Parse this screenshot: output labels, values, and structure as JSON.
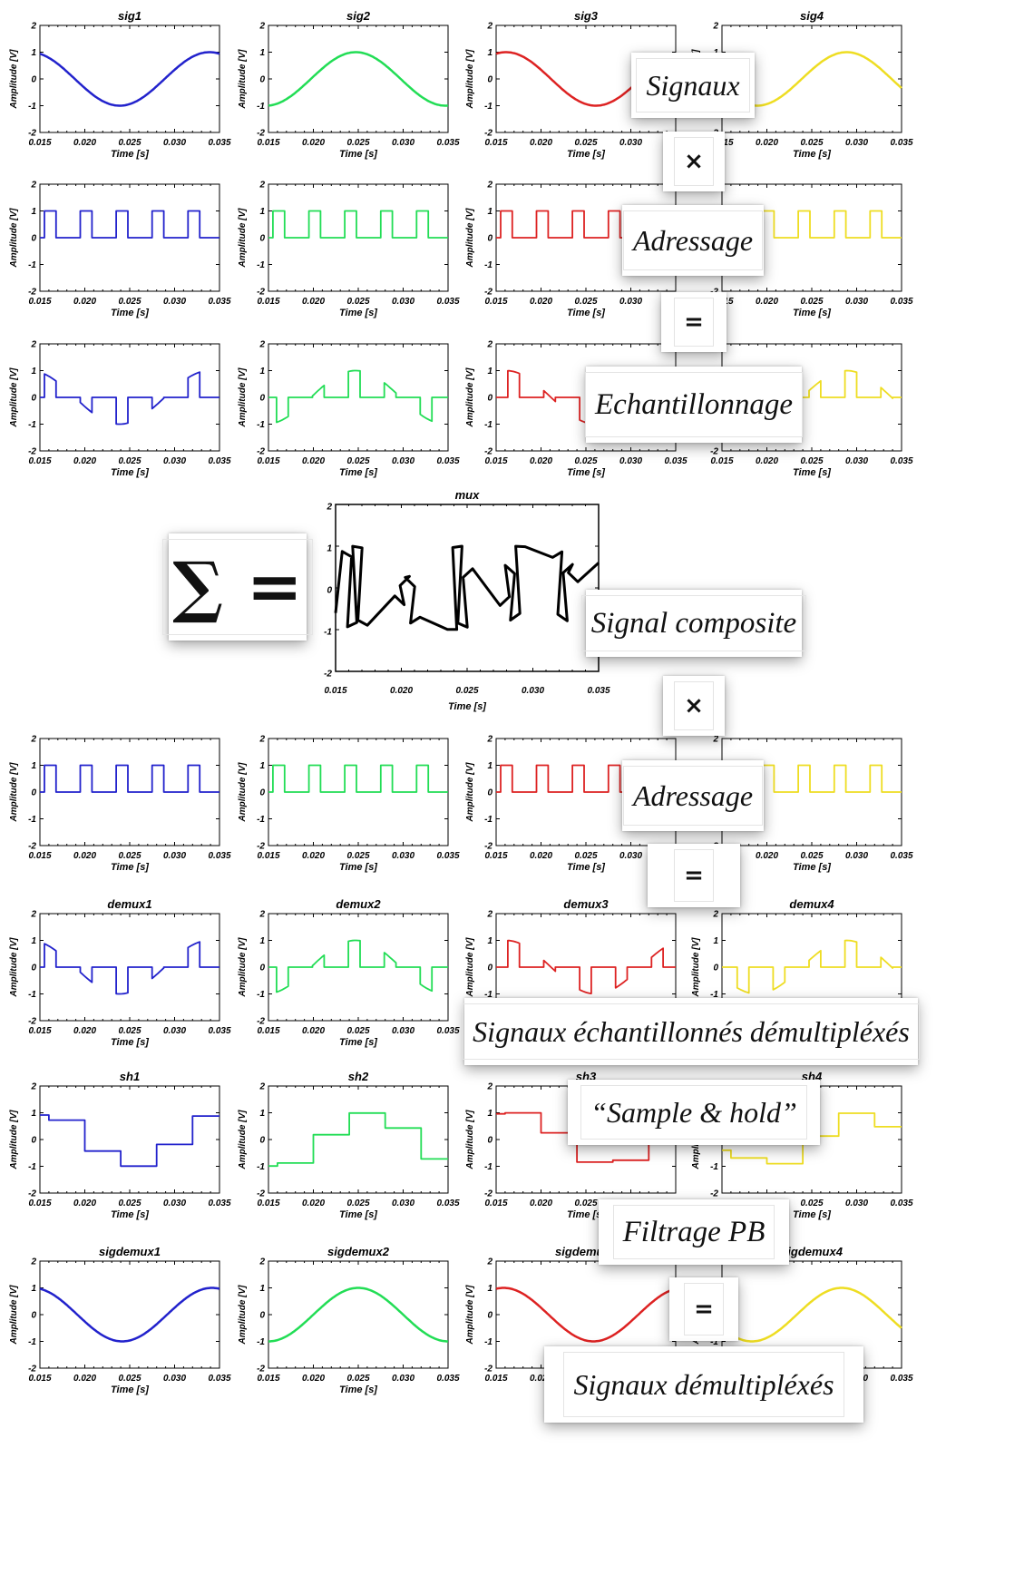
{
  "common": {
    "xlabel": "Time [s]",
    "ylabel": "Amplitude [V]",
    "xticks": [
      "0.015",
      "0.020",
      "0.025",
      "0.030",
      "0.035"
    ],
    "yticks": [
      "2",
      "1",
      "0",
      "-1",
      "-2"
    ]
  },
  "colors": {
    "c1": "#2222cc",
    "c2": "#22dd55",
    "c3": "#dd2222",
    "c4": "#eedd22",
    "mux": "#000000"
  },
  "chart_data": [
    {
      "id": "sig1",
      "type": "line",
      "title": "sig1",
      "xlim": [
        0.015,
        0.035
      ],
      "ylim": [
        -2,
        2
      ],
      "color": "c1",
      "kind": "sine",
      "phase_deg": 200
    },
    {
      "id": "sig2",
      "type": "line",
      "title": "sig2",
      "xlim": [
        0.015,
        0.035
      ],
      "ylim": [
        -2,
        2
      ],
      "color": "c2",
      "kind": "sine",
      "phase_deg": 5
    },
    {
      "id": "sig3",
      "type": "line",
      "title": "sig3",
      "xlim": [
        0.015,
        0.035
      ],
      "ylim": [
        -2,
        2
      ],
      "color": "c3",
      "kind": "sine",
      "phase_deg": 160
    },
    {
      "id": "sig4",
      "type": "line",
      "title": "sig4",
      "xlim": [
        0.015,
        0.035
      ],
      "ylim": [
        -2,
        2
      ],
      "color": "c4",
      "kind": "sine",
      "phase_deg": 290
    },
    {
      "id": "adr1",
      "type": "line",
      "title": "",
      "xlim": [
        0.015,
        0.035
      ],
      "ylim": [
        -2,
        2
      ],
      "color": "c1",
      "kind": "pulse",
      "offset": 0
    },
    {
      "id": "adr2",
      "type": "line",
      "title": "",
      "xlim": [
        0.015,
        0.035
      ],
      "ylim": [
        -2,
        2
      ],
      "color": "c2",
      "kind": "pulse",
      "offset": 0
    },
    {
      "id": "adr3",
      "type": "line",
      "title": "",
      "xlim": [
        0.015,
        0.035
      ],
      "ylim": [
        -2,
        2
      ],
      "color": "c3",
      "kind": "pulse",
      "offset": 0
    },
    {
      "id": "adr4",
      "type": "line",
      "title": "",
      "xlim": [
        0.015,
        0.035
      ],
      "ylim": [
        -2,
        2
      ],
      "color": "c4",
      "kind": "pulse",
      "offset": 0
    },
    {
      "id": "ech1",
      "type": "line",
      "title": "",
      "xlim": [
        0.015,
        0.035
      ],
      "ylim": [
        -2,
        2
      ],
      "color": "c1",
      "kind": "sampled",
      "src": "sig1"
    },
    {
      "id": "ech2",
      "type": "line",
      "title": "",
      "xlim": [
        0.015,
        0.035
      ],
      "ylim": [
        -2,
        2
      ],
      "color": "c2",
      "kind": "sampled",
      "src": "sig2"
    },
    {
      "id": "ech3",
      "type": "line",
      "title": "",
      "xlim": [
        0.015,
        0.035
      ],
      "ylim": [
        -2,
        2
      ],
      "color": "c3",
      "kind": "sampled",
      "src": "sig3"
    },
    {
      "id": "ech4",
      "type": "line",
      "title": "",
      "xlim": [
        0.015,
        0.035
      ],
      "ylim": [
        -2,
        2
      ],
      "color": "c4",
      "kind": "sampled",
      "src": "sig4"
    },
    {
      "id": "mux",
      "type": "line",
      "title": "mux",
      "xlim": [
        0.015,
        0.035
      ],
      "ylim": [
        -2,
        2
      ],
      "color": "mux",
      "kind": "mux"
    },
    {
      "id": "dadr1",
      "type": "line",
      "title": "",
      "xlim": [
        0.015,
        0.035
      ],
      "ylim": [
        -2,
        2
      ],
      "color": "c1",
      "kind": "pulse",
      "offset": 0
    },
    {
      "id": "dadr2",
      "type": "line",
      "title": "",
      "xlim": [
        0.015,
        0.035
      ],
      "ylim": [
        -2,
        2
      ],
      "color": "c2",
      "kind": "pulse",
      "offset": 0
    },
    {
      "id": "dadr3",
      "type": "line",
      "title": "",
      "xlim": [
        0.015,
        0.035
      ],
      "ylim": [
        -2,
        2
      ],
      "color": "c3",
      "kind": "pulse",
      "offset": 0
    },
    {
      "id": "dadr4",
      "type": "line",
      "title": "",
      "xlim": [
        0.015,
        0.035
      ],
      "ylim": [
        -2,
        2
      ],
      "color": "c4",
      "kind": "pulse",
      "offset": 0
    },
    {
      "id": "demux1",
      "type": "line",
      "title": "demux1",
      "xlim": [
        0.015,
        0.035
      ],
      "ylim": [
        -2,
        2
      ],
      "color": "c1",
      "kind": "sampled",
      "src": "sig1"
    },
    {
      "id": "demux2",
      "type": "line",
      "title": "demux2",
      "xlim": [
        0.015,
        0.035
      ],
      "ylim": [
        -2,
        2
      ],
      "color": "c2",
      "kind": "sampled",
      "src": "sig2"
    },
    {
      "id": "demux3",
      "type": "line",
      "title": "demux3",
      "xlim": [
        0.015,
        0.035
      ],
      "ylim": [
        -2,
        2
      ],
      "color": "c3",
      "kind": "sampled",
      "src": "sig3"
    },
    {
      "id": "demux4",
      "type": "line",
      "title": "demux4",
      "xlim": [
        0.015,
        0.035
      ],
      "ylim": [
        -2,
        2
      ],
      "color": "c4",
      "kind": "sampled",
      "src": "sig4"
    },
    {
      "id": "sh1",
      "type": "line",
      "title": "sh1",
      "xlim": [
        0.015,
        0.035
      ],
      "ylim": [
        -2,
        2
      ],
      "color": "c1",
      "kind": "hold",
      "src": "sig1"
    },
    {
      "id": "sh2",
      "type": "line",
      "title": "sh2",
      "xlim": [
        0.015,
        0.035
      ],
      "ylim": [
        -2,
        2
      ],
      "color": "c2",
      "kind": "hold",
      "src": "sig2"
    },
    {
      "id": "sh3",
      "type": "line",
      "title": "sh3",
      "xlim": [
        0.015,
        0.035
      ],
      "ylim": [
        -2,
        2
      ],
      "color": "c3",
      "kind": "hold",
      "src": "sig3"
    },
    {
      "id": "sh4",
      "type": "line",
      "title": "sh4",
      "xlim": [
        0.015,
        0.035
      ],
      "ylim": [
        -2,
        2
      ],
      "color": "c4",
      "kind": "hold",
      "src": "sig4"
    },
    {
      "id": "sigdemux1",
      "type": "line",
      "title": "sigdemux1",
      "xlim": [
        0.015,
        0.035
      ],
      "ylim": [
        -2,
        2
      ],
      "color": "c1",
      "kind": "sine",
      "phase_deg": 195
    },
    {
      "id": "sigdemux2",
      "type": "line",
      "title": "sigdemux2",
      "xlim": [
        0.015,
        0.035
      ],
      "ylim": [
        -2,
        2
      ],
      "color": "c2",
      "kind": "sine",
      "phase_deg": 0
    },
    {
      "id": "sigdemux3",
      "type": "line",
      "title": "sigdemux3",
      "xlim": [
        0.015,
        0.035
      ],
      "ylim": [
        -2,
        2
      ],
      "color": "c3",
      "kind": "sine",
      "phase_deg": 165
    },
    {
      "id": "sigdemux4",
      "type": "line",
      "title": "sigdemux4",
      "xlim": [
        0.015,
        0.035
      ],
      "ylim": [
        -2,
        2
      ],
      "color": "c4",
      "kind": "sine",
      "phase_deg": 300
    }
  ],
  "cards": {
    "signaux": "Signaux",
    "times1": "×",
    "adressage1": "Adressage",
    "equals1": "=",
    "echantillonnage": "Echantillonnage",
    "sum": "∑ =",
    "signal_composite": "Signal composite",
    "times2": "×",
    "adressage2": "Adressage",
    "equals2": "=",
    "signaux_ech_demux": "Signaux échantillonnés démultipléxés",
    "sample_hold": "“Sample & hold”",
    "filtrage": "Filtrage PB",
    "equals3": "=",
    "signaux_demux": "Signaux démultipléxés"
  }
}
